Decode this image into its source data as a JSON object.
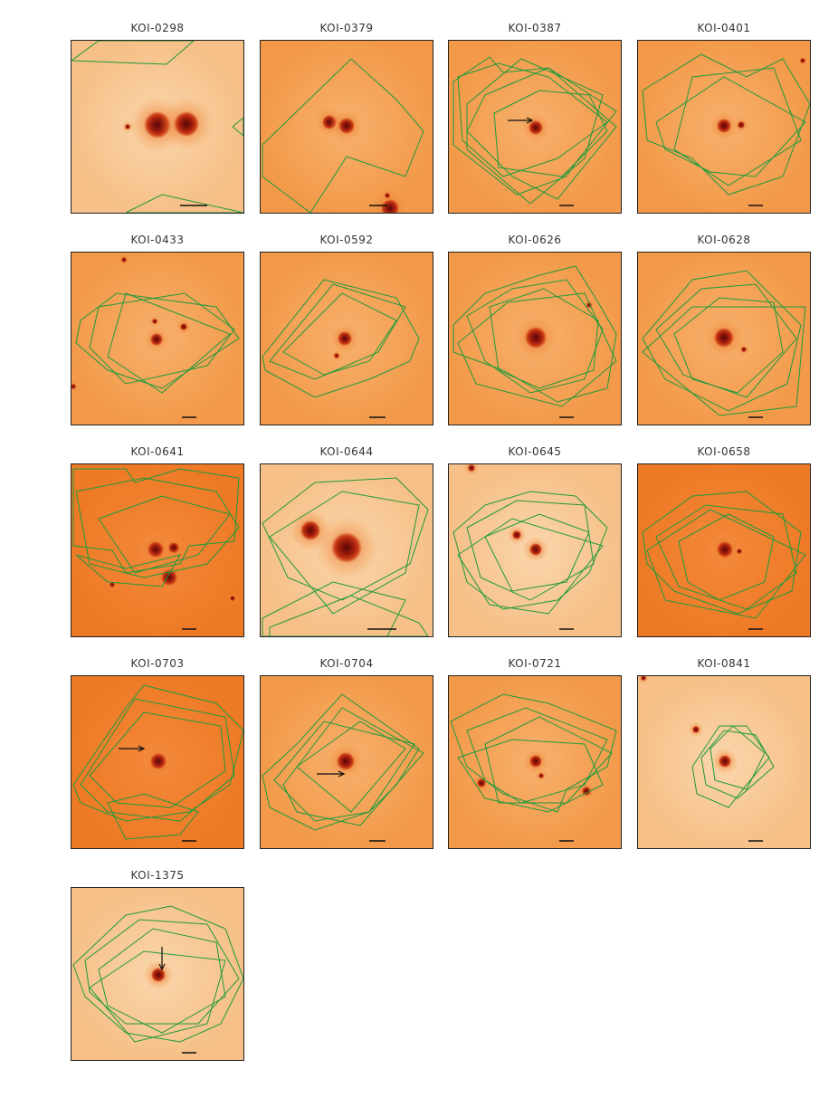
{
  "page": {
    "background": "#ffffff"
  },
  "colors": {
    "sky_light": "#f9cf9f",
    "sky_dark": "#f18232",
    "star_core": "#5a0808",
    "star_mid": "#c83a14",
    "footprint": "#1f9a3a",
    "arrow": "#111111",
    "scalebar": "#111111"
  },
  "panels": [
    {
      "title": "KOI-0298",
      "sky": "light",
      "arrow": false
    },
    {
      "title": "KOI-0379",
      "sky": "medium",
      "arrow": false
    },
    {
      "title": "KOI-0387",
      "sky": "medium",
      "arrow": true
    },
    {
      "title": "KOI-0401",
      "sky": "medium",
      "arrow": false
    },
    {
      "title": "KOI-0433",
      "sky": "medium",
      "arrow": false
    },
    {
      "title": "KOI-0592",
      "sky": "medium",
      "arrow": false
    },
    {
      "title": "KOI-0626",
      "sky": "medium",
      "arrow": false
    },
    {
      "title": "KOI-0628",
      "sky": "medium",
      "arrow": false
    },
    {
      "title": "KOI-0641",
      "sky": "dark",
      "arrow": false
    },
    {
      "title": "KOI-0644",
      "sky": "light",
      "arrow": false
    },
    {
      "title": "KOI-0645",
      "sky": "light",
      "arrow": false
    },
    {
      "title": "KOI-0658",
      "sky": "dark",
      "arrow": false
    },
    {
      "title": "KOI-0703",
      "sky": "dark",
      "arrow": true
    },
    {
      "title": "KOI-0704",
      "sky": "medium",
      "arrow": true
    },
    {
      "title": "KOI-0721",
      "sky": "medium",
      "arrow": false
    },
    {
      "title": "KOI-0841",
      "sky": "light",
      "arrow": false
    },
    {
      "title": "KOI-1375",
      "sky": "light",
      "arrow": true
    }
  ]
}
